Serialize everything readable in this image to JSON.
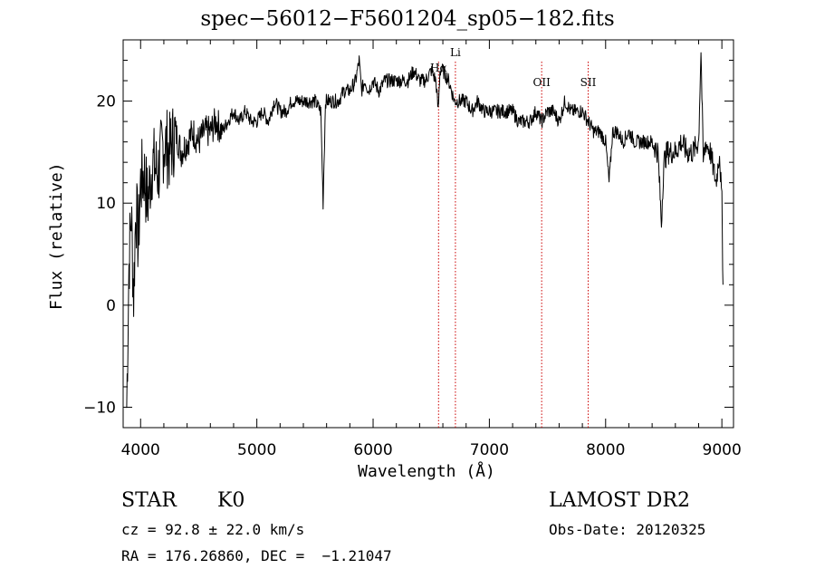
{
  "chart_data": {
    "type": "line",
    "title": "spec−56012−F5601204_sp05−182.fits",
    "xlabel": "Wavelength (Å)",
    "ylabel": "Flux (relative)",
    "xlim": [
      3850,
      9100
    ],
    "ylim": [
      -12,
      26
    ],
    "xticks": [
      4000,
      5000,
      6000,
      7000,
      8000,
      9000
    ],
    "yticks": [
      -10,
      0,
      10,
      20
    ],
    "line_color": "#000000",
    "marker_color": "#cc0000",
    "series": [
      {
        "x": [
          3880,
          3900,
          3920,
          3940,
          3960,
          3980,
          4000,
          4030,
          4060,
          4100,
          4150,
          4200,
          4250,
          4300,
          4350,
          4400,
          4450,
          4500,
          4550,
          4600,
          4650,
          4700,
          4750,
          4800,
          4850,
          4900,
          4950,
          5000,
          5050,
          5100,
          5150,
          5200,
          5250,
          5300,
          5350,
          5400,
          5450,
          5500,
          5550,
          5570,
          5590,
          5610,
          5650,
          5700,
          5750,
          5800,
          5850,
          5880,
          5900,
          5930,
          5960,
          6000,
          6050,
          6100,
          6150,
          6200,
          6250,
          6300,
          6350,
          6400,
          6450,
          6500,
          6540,
          6560,
          6575,
          6600,
          6650,
          6700,
          6750,
          6800,
          6850,
          6900,
          6950,
          7000,
          7050,
          7100,
          7150,
          7200,
          7250,
          7300,
          7350,
          7400,
          7450,
          7500,
          7550,
          7600,
          7650,
          7700,
          7750,
          7800,
          7850,
          7900,
          7950,
          8000,
          8030,
          8060,
          8100,
          8150,
          8200,
          8250,
          8300,
          8350,
          8400,
          8450,
          8480,
          8500,
          8530,
          8560,
          8600,
          8650,
          8700,
          8750,
          8800,
          8820,
          8840,
          8860,
          8900,
          8950,
          8980,
          9000,
          9010
        ],
        "y": [
          -10,
          4,
          9,
          1,
          10,
          6,
          12,
          13,
          10,
          14,
          13,
          16,
          15,
          17,
          15,
          16,
          17,
          16,
          17,
          17,
          18,
          17,
          18,
          19,
          18,
          19,
          18,
          18,
          19,
          18,
          20,
          19,
          19,
          20,
          20,
          20,
          20,
          20,
          19,
          10,
          20,
          20,
          20,
          20,
          21,
          21,
          22,
          24,
          21,
          22,
          21,
          22,
          21,
          22,
          22,
          22,
          22,
          22,
          23,
          22,
          22,
          23,
          22,
          19,
          23,
          23,
          22,
          20,
          20,
          20,
          19,
          20,
          19,
          19,
          19,
          19,
          19,
          19,
          18,
          18,
          18,
          19,
          18,
          19,
          19,
          18,
          20,
          19,
          19,
          19,
          18,
          17,
          17,
          16,
          12,
          17,
          17,
          16,
          17,
          16,
          16,
          16,
          16,
          15,
          8,
          14,
          15,
          15,
          15,
          16,
          15,
          15,
          16,
          25,
          14,
          16,
          15,
          12,
          15,
          10,
          2
        ]
      }
    ],
    "line_markers": [
      {
        "label": "Hα",
        "x": 6563
      },
      {
        "label": "Li",
        "x": 6708
      },
      {
        "label": "OII",
        "x": 7450
      },
      {
        "label": "SII",
        "x": 7850
      }
    ]
  },
  "info": {
    "class_label": "STAR",
    "subclass_label": "K0",
    "survey": "LAMOST DR2",
    "cz": "cz = 92.8 ± 22.0 km/s",
    "obs_date": "Obs-Date: 20120325",
    "coords": "RA = 176.26860, DEC =  −1.21047"
  }
}
